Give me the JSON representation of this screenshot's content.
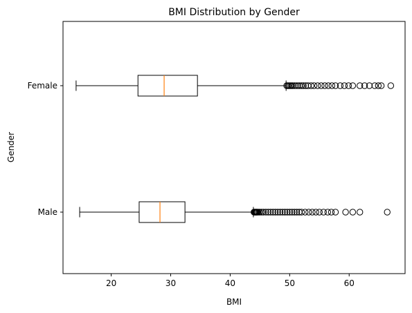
{
  "chart_data": {
    "type": "boxplot",
    "orientation": "horizontal",
    "title": "BMI Distribution by Gender",
    "xlabel": "BMI",
    "ylabel": "Gender",
    "xlim": [
      11.9,
      69.4
    ],
    "xticks": [
      20,
      30,
      40,
      50,
      60
    ],
    "grid": false,
    "categories": [
      "Male",
      "Female"
    ],
    "boxes": [
      {
        "category": "Male",
        "whisker_low": 14.7,
        "q1": 24.7,
        "median": 28.2,
        "q3": 32.4,
        "whisker_high": 43.9,
        "outliers": [
          44.0,
          44.1,
          44.2,
          44.3,
          44.4,
          44.5,
          44.6,
          44.8,
          45.0,
          45.3,
          45.6,
          46.0,
          46.4,
          46.8,
          47.2,
          47.6,
          48.0,
          48.4,
          48.8,
          49.2,
          49.6,
          50.0,
          50.4,
          50.8,
          51.2,
          51.6,
          52.0,
          52.6,
          53.2,
          53.8,
          54.4,
          55.0,
          55.7,
          56.4,
          57.0,
          57.7,
          59.4,
          60.6,
          61.8,
          66.4
        ],
        "median_color": "#ff7f0e"
      },
      {
        "category": "Female",
        "whisker_low": 14.1,
        "q1": 24.5,
        "median": 28.9,
        "q3": 34.5,
        "whisker_high": 49.4,
        "outliers": [
          49.5,
          49.7,
          49.9,
          50.1,
          50.3,
          50.5,
          50.8,
          51.1,
          51.4,
          51.7,
          52.0,
          52.3,
          52.7,
          53.1,
          53.6,
          54.1,
          54.7,
          55.3,
          55.9,
          56.5,
          57.1,
          57.7,
          58.5,
          59.2,
          59.9,
          60.6,
          61.8,
          62.6,
          63.4,
          64.3,
          64.9,
          65.4,
          67.0
        ],
        "median_color": "#ff7f0e"
      }
    ]
  }
}
